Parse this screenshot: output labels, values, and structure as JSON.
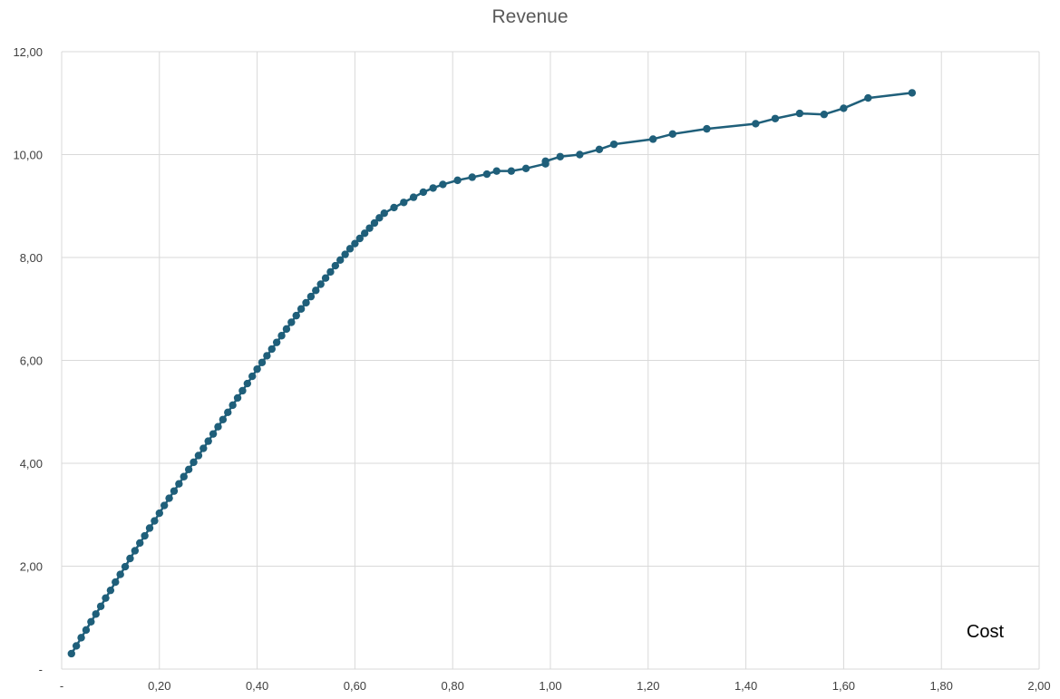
{
  "chart_data": {
    "type": "scatter",
    "title": "Revenue",
    "xlabel": "Cost",
    "ylabel": "",
    "xlim": [
      0,
      2.0
    ],
    "ylim": [
      0,
      12
    ],
    "x_ticks": [
      "-",
      "0,20",
      "0,40",
      "0,60",
      "0,80",
      "1,00",
      "1,20",
      "1,40",
      "1,60",
      "1,80",
      "2,00"
    ],
    "y_ticks": [
      "-",
      "2,00",
      "4,00",
      "6,00",
      "8,00",
      "10,00",
      "12,00"
    ],
    "grid": true,
    "marker_color": "#1f5f7a",
    "line_color": "#1f5f7a",
    "points": [
      [
        0.02,
        0.3
      ],
      [
        0.03,
        0.45
      ],
      [
        0.04,
        0.61
      ],
      [
        0.05,
        0.76
      ],
      [
        0.06,
        0.92
      ],
      [
        0.07,
        1.07
      ],
      [
        0.08,
        1.22
      ],
      [
        0.09,
        1.38
      ],
      [
        0.1,
        1.53
      ],
      [
        0.11,
        1.69
      ],
      [
        0.12,
        1.84
      ],
      [
        0.13,
        1.99
      ],
      [
        0.14,
        2.15
      ],
      [
        0.15,
        2.3
      ],
      [
        0.16,
        2.45
      ],
      [
        0.17,
        2.59
      ],
      [
        0.18,
        2.74
      ],
      [
        0.19,
        2.88
      ],
      [
        0.2,
        3.03
      ],
      [
        0.21,
        3.18
      ],
      [
        0.22,
        3.32
      ],
      [
        0.23,
        3.46
      ],
      [
        0.24,
        3.6
      ],
      [
        0.25,
        3.74
      ],
      [
        0.26,
        3.88
      ],
      [
        0.27,
        4.02
      ],
      [
        0.28,
        4.15
      ],
      [
        0.29,
        4.29
      ],
      [
        0.3,
        4.43
      ],
      [
        0.31,
        4.57
      ],
      [
        0.32,
        4.71
      ],
      [
        0.33,
        4.85
      ],
      [
        0.34,
        4.99
      ],
      [
        0.35,
        5.13
      ],
      [
        0.36,
        5.27
      ],
      [
        0.37,
        5.41
      ],
      [
        0.38,
        5.55
      ],
      [
        0.39,
        5.69
      ],
      [
        0.4,
        5.83
      ],
      [
        0.41,
        5.96
      ],
      [
        0.42,
        6.09
      ],
      [
        0.43,
        6.22
      ],
      [
        0.44,
        6.35
      ],
      [
        0.45,
        6.48
      ],
      [
        0.46,
        6.61
      ],
      [
        0.47,
        6.74
      ],
      [
        0.48,
        6.87
      ],
      [
        0.49,
        7.0
      ],
      [
        0.5,
        7.12
      ],
      [
        0.51,
        7.24
      ],
      [
        0.52,
        7.36
      ],
      [
        0.53,
        7.48
      ],
      [
        0.54,
        7.6
      ],
      [
        0.55,
        7.72
      ],
      [
        0.56,
        7.84
      ],
      [
        0.57,
        7.95
      ],
      [
        0.58,
        8.06
      ],
      [
        0.59,
        8.17
      ],
      [
        0.6,
        8.27
      ],
      [
        0.61,
        8.37
      ],
      [
        0.62,
        8.47
      ],
      [
        0.63,
        8.57
      ],
      [
        0.64,
        8.67
      ],
      [
        0.65,
        8.77
      ],
      [
        0.66,
        8.86
      ],
      [
        0.68,
        8.97
      ],
      [
        0.7,
        9.07
      ],
      [
        0.72,
        9.17
      ],
      [
        0.74,
        9.27
      ],
      [
        0.76,
        9.35
      ],
      [
        0.78,
        9.42
      ],
      [
        0.81,
        9.5
      ],
      [
        0.84,
        9.56
      ],
      [
        0.87,
        9.62
      ],
      [
        0.89,
        9.68
      ],
      [
        0.92,
        9.68
      ],
      [
        0.95,
        9.73
      ],
      [
        0.99,
        9.82
      ],
      [
        0.99,
        9.87
      ],
      [
        1.02,
        9.96
      ],
      [
        1.06,
        10.0
      ],
      [
        1.1,
        10.1
      ],
      [
        1.13,
        10.2
      ],
      [
        1.21,
        10.3
      ],
      [
        1.25,
        10.4
      ],
      [
        1.32,
        10.5
      ],
      [
        1.42,
        10.6
      ],
      [
        1.46,
        10.7
      ],
      [
        1.51,
        10.8
      ],
      [
        1.56,
        10.78
      ],
      [
        1.6,
        10.9
      ],
      [
        1.65,
        11.1
      ],
      [
        1.74,
        11.2
      ]
    ]
  }
}
